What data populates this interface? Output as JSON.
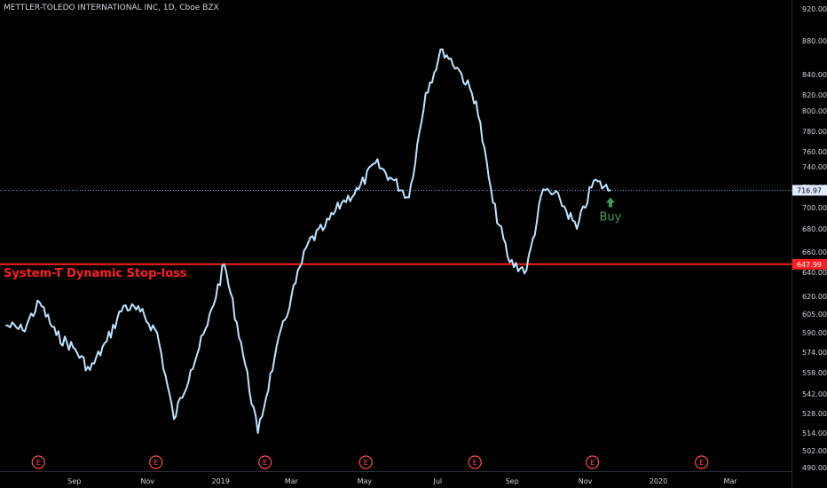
{
  "header": {
    "symbol_title": "METTLER-TOLEDO INTERNATIONAL INC, 1D, Cboe BZX"
  },
  "colors": {
    "background": "#000000",
    "price_line": "#bfe3ff",
    "stop_line": "#ff1e1e",
    "current_dotted": "#7aa7ff",
    "axis_text": "#d1d4dc",
    "buy_green": "#3c9b5a",
    "earnings_red": "#ff4a4a"
  },
  "annotations": {
    "stop_label": "System-T Dynamic Stop-loss",
    "buy_label": "Buy",
    "buy_icon": "up-arrow-icon",
    "current_price_tag": "716.97",
    "stop_price_tag": "647.99",
    "earnings_marker": "E"
  },
  "chart_data": {
    "type": "line",
    "series_name": "",
    "x_ticks": [
      "Sep",
      "Nov",
      "2019",
      "Mar",
      "May",
      "Jul",
      "Sep",
      "Nov",
      "2020",
      "Mar"
    ],
    "y_ticks": [
      "920.00",
      "880.00",
      "840.00",
      "820.00",
      "800.00",
      "780.00",
      "760.00",
      "740.00",
      "720.00",
      "700.00",
      "680.00",
      "660.00",
      "640.00",
      "620.00",
      "605.00",
      "590.00",
      "574.00",
      "558.00",
      "542.00",
      "528.00",
      "514.00",
      "502.00",
      "490.00"
    ],
    "earnings_markers_x": [
      "2018-08-02",
      "2018-11-08",
      "2019-02-07",
      "2019-05-02",
      "2019-08-01",
      "2019-11-07",
      "2020-02-06"
    ],
    "stop_loss_level": 647.99,
    "current_price": 716.97,
    "buy_signal": {
      "x": "2019-11-22",
      "label": "Buy"
    },
    "x": [
      "2018-07-06",
      "2018-07-20",
      "2018-08-03",
      "2018-08-17",
      "2018-08-31",
      "2018-09-14",
      "2018-09-28",
      "2018-10-12",
      "2018-10-26",
      "2018-11-09",
      "2018-11-23",
      "2018-12-07",
      "2018-12-21",
      "2019-01-04",
      "2019-01-18",
      "2019-02-01",
      "2019-02-15",
      "2019-03-01",
      "2019-03-15",
      "2019-03-29",
      "2019-04-12",
      "2019-04-26",
      "2019-05-10",
      "2019-05-24",
      "2019-06-07",
      "2019-06-21",
      "2019-07-05",
      "2019-07-19",
      "2019-08-02",
      "2019-08-16",
      "2019-08-30",
      "2019-09-13",
      "2019-09-27",
      "2019-10-11",
      "2019-10-25",
      "2019-11-08",
      "2019-11-22"
    ],
    "values": [
      596,
      592,
      615,
      588,
      578,
      560,
      583,
      612,
      607,
      590,
      524,
      560,
      596,
      648,
      582,
      514,
      570,
      620,
      668,
      682,
      705,
      718,
      745,
      728,
      710,
      822,
      870,
      845,
      812,
      705,
      650,
      642,
      718,
      708,
      680,
      726,
      717
    ],
    "ylim": [
      490,
      920
    ]
  }
}
